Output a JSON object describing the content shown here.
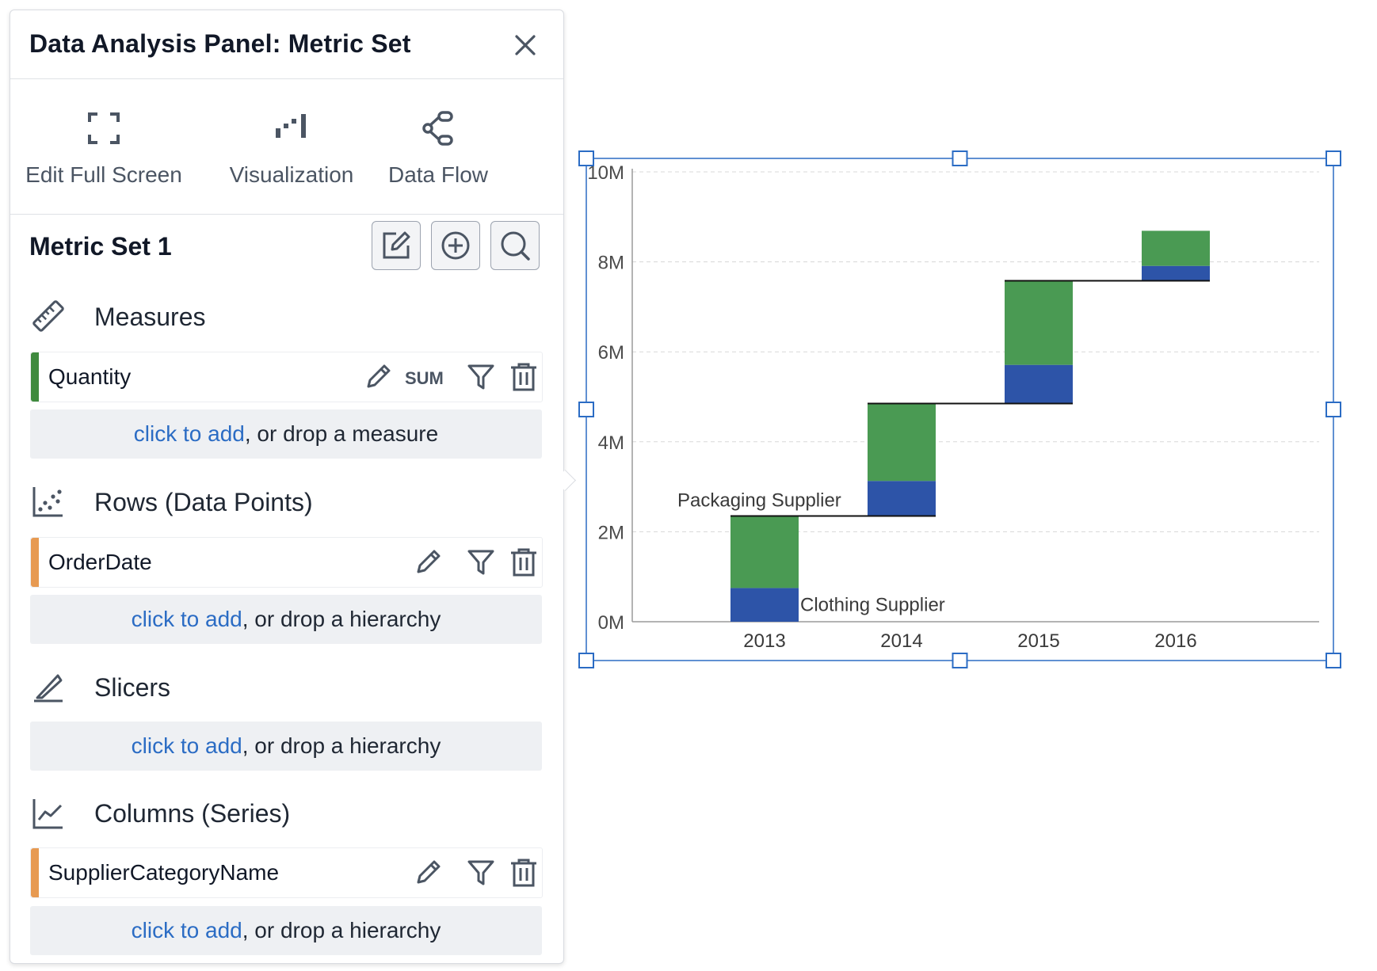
{
  "panel": {
    "title": "Data Analysis Panel: Metric Set",
    "close_icon": "close-icon"
  },
  "toolbar": {
    "items": [
      {
        "label": "Edit Full Screen",
        "icon": "fullscreen-icon"
      },
      {
        "label": "Visualization",
        "icon": "visualization-icon"
      },
      {
        "label": "Data Flow",
        "icon": "data-flow-icon"
      }
    ]
  },
  "metric_set": {
    "title": "Metric Set 1",
    "buttons": [
      {
        "icon": "edit-icon"
      },
      {
        "icon": "add-circle-icon"
      },
      {
        "icon": "search-icon"
      }
    ]
  },
  "sections": {
    "measures": {
      "title": "Measures",
      "icon": "ruler-icon",
      "field": {
        "label": "Quantity",
        "aggregation": "SUM",
        "bar_color": "#3f8a3e"
      },
      "drop": {
        "link": "click to add",
        "text": ", or drop a measure"
      }
    },
    "rows": {
      "title": "Rows (Data Points)",
      "icon": "scatter-icon",
      "field": {
        "label": "OrderDate",
        "bar_color": "#e79a52"
      },
      "drop": {
        "link": "click to add",
        "text": ", or drop a hierarchy"
      }
    },
    "slicers": {
      "title": "Slicers",
      "icon": "knife-icon",
      "drop": {
        "link": "click to add",
        "text": ", or drop a hierarchy"
      }
    },
    "columns": {
      "title": "Columns (Series)",
      "icon": "line-chart-icon",
      "field": {
        "label": "SupplierCategoryName",
        "bar_color": "#e79a52"
      },
      "drop": {
        "link": "click to add",
        "text": ", or drop a hierarchy"
      }
    }
  },
  "colors": {
    "accent_link": "#2b6cc4",
    "green_series": "#4a9a53",
    "blue_series": "#2d54a8",
    "selection": "#2b6cc4"
  },
  "chart_data": {
    "type": "bar",
    "subtype": "stacked-waterfall",
    "categories": [
      "2013",
      "2014",
      "2015",
      "2016"
    ],
    "series": [
      {
        "name": "Clothing Supplier",
        "color": "#2d54a8",
        "values": [
          0.75,
          0.78,
          0.86,
          0.33
        ]
      },
      {
        "name": "Packaging Supplier",
        "color": "#4a9a53",
        "values": [
          1.6,
          1.72,
          1.87,
          0.78
        ]
      }
    ],
    "y_tick_labels": [
      "0M",
      "2M",
      "4M",
      "6M",
      "8M",
      "10M"
    ],
    "ylim": [
      0,
      10
    ],
    "y_unit": "M",
    "grid": true,
    "series_label_positions": "inline"
  }
}
